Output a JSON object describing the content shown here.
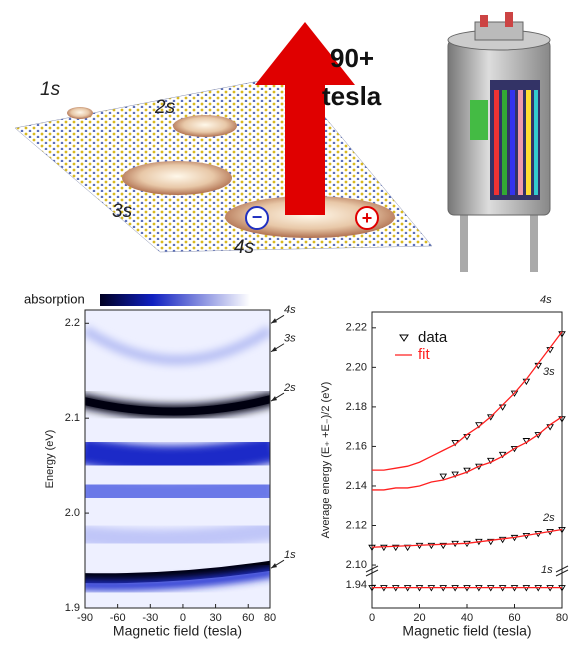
{
  "illustration": {
    "labels": [
      "1s",
      "2s",
      "3s",
      "4s"
    ],
    "field": "90+",
    "unit": "tesla",
    "minus": "−",
    "plus": "+"
  },
  "chart_data": [
    {
      "type": "heatmap",
      "colorbar_label": "absorption",
      "xlabel": "Magnetic field (tesla)",
      "ylabel": "Energy (eV)",
      "xlim": [
        -90,
        80
      ],
      "xticks": [
        -90,
        -60,
        -30,
        0,
        30,
        60,
        80
      ],
      "ylim": [
        1.9,
        2.214
      ],
      "yticks": [
        1.9,
        {
          "value": 2.0,
          "label": "2.0"
        },
        2.1,
        2.2
      ],
      "annotations": [
        {
          "text": "4s",
          "y": 2.2
        },
        {
          "text": "3s",
          "y": 2.17
        },
        {
          "text": "2s",
          "y": 2.118
        },
        {
          "text": "1s",
          "y": 1.942
        }
      ]
    },
    {
      "type": "scatter",
      "xlabel": "Magnetic field (tesla)",
      "ylabel": "Average energy (E₊ +E₋)/2 (eV)",
      "xlim": [
        0,
        80
      ],
      "xticks": [
        0,
        20,
        40,
        60,
        80
      ],
      "ylim": [
        1.93,
        2.228
      ],
      "ybreak": [
        1.945,
        2.098
      ],
      "yticks": [
        1.94,
        {
          "value": 2.1,
          "label": "2.10"
        },
        2.12,
        2.14,
        2.16,
        2.18,
        {
          "value": 2.2,
          "label": "2.20"
        },
        2.22
      ],
      "legend": "upper left",
      "series": [
        {
          "name": "data",
          "color": "#000000",
          "marker": "triangle",
          "x": [
            35,
            40,
            45,
            50,
            55,
            60,
            65,
            70,
            75,
            80
          ],
          "values": [
            2.162,
            2.165,
            2.171,
            2.175,
            2.18,
            2.187,
            2.193,
            2.201,
            2.209,
            2.217
          ]
        },
        {
          "color": "#000000",
          "marker": "triangle",
          "x": [
            30,
            35,
            40,
            45,
            50,
            55,
            60,
            65,
            70,
            75,
            80
          ],
          "values": [
            2.145,
            2.146,
            2.148,
            2.15,
            2.153,
            2.156,
            2.159,
            2.163,
            2.166,
            2.17,
            2.174
          ]
        },
        {
          "color": "#000000",
          "marker": "triangle",
          "x": [
            0,
            5,
            10,
            15,
            20,
            25,
            30,
            35,
            40,
            45,
            50,
            55,
            60,
            65,
            70,
            75,
            80
          ],
          "values": [
            2.109,
            2.109,
            2.109,
            2.109,
            2.11,
            2.11,
            2.11,
            2.111,
            2.111,
            2.112,
            2.112,
            2.113,
            2.114,
            2.115,
            2.116,
            2.117,
            2.118
          ]
        },
        {
          "color": "#000000",
          "marker": "triangle",
          "x": [
            0,
            5,
            10,
            15,
            20,
            25,
            30,
            35,
            40,
            45,
            50,
            55,
            60,
            65,
            70,
            75,
            80
          ],
          "values": [
            1.939,
            1.939,
            1.939,
            1.939,
            1.939,
            1.939,
            1.939,
            1.939,
            1.939,
            1.939,
            1.939,
            1.939,
            1.939,
            1.939,
            1.939,
            1.939,
            1.939
          ]
        },
        {
          "name": "fit",
          "color": "#ff2020",
          "marker": "line",
          "x": [
            0,
            5,
            10,
            15,
            20,
            25,
            30,
            35,
            40,
            45,
            50,
            55,
            60,
            65,
            70,
            75,
            80
          ],
          "values": [
            2.148,
            2.148,
            2.149,
            2.15,
            2.152,
            2.155,
            2.158,
            2.161,
            2.166,
            2.17,
            2.175,
            2.181,
            2.187,
            2.194,
            2.202,
            2.21,
            2.218
          ]
        },
        {
          "color": "#ff2020",
          "marker": "line",
          "x": [
            0,
            5,
            10,
            15,
            20,
            25,
            30,
            35,
            40,
            45,
            50,
            55,
            60,
            65,
            70,
            75,
            80
          ],
          "values": [
            2.138,
            2.138,
            2.139,
            2.139,
            2.14,
            2.142,
            2.143,
            2.145,
            2.147,
            2.15,
            2.152,
            2.155,
            2.159,
            2.162,
            2.166,
            2.171,
            2.175
          ]
        },
        {
          "color": "#ff2020",
          "marker": "line",
          "x": [
            0,
            20,
            40,
            60,
            80
          ],
          "values": [
            2.109,
            2.11,
            2.111,
            2.114,
            2.118
          ]
        },
        {
          "color": "#ff2020",
          "marker": "line",
          "x": [
            0,
            80
          ],
          "values": [
            1.939,
            1.939
          ]
        }
      ],
      "state_labels": [
        "4s",
        "3s",
        "2s",
        "1s"
      ]
    }
  ]
}
